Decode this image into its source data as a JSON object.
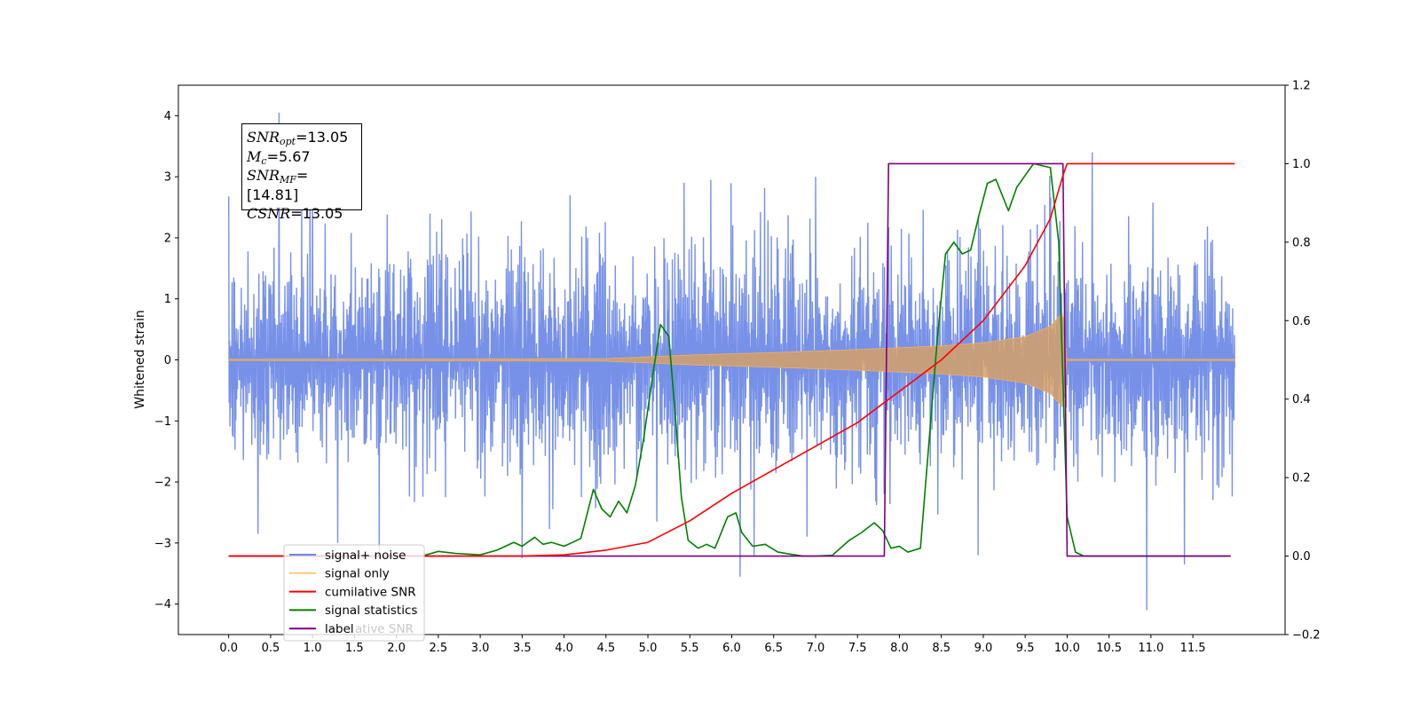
{
  "chart_data": {
    "type": "line",
    "title": "",
    "xlabel": "",
    "ylabel": "Whitened strain",
    "xlim": [
      -0.6,
      12.6
    ],
    "ylim": [
      -4.5,
      4.5
    ],
    "y2lim": [
      -0.2,
      1.2
    ],
    "x_ticks": [
      "0.0",
      "0.5",
      "1.0",
      "1.5",
      "2.0",
      "2.5",
      "3.0",
      "3.5",
      "4.0",
      "4.5",
      "5.0",
      "5.5",
      "6.0",
      "6.5",
      "7.0",
      "7.5",
      "8.0",
      "8.5",
      "9.0",
      "9.5",
      "10.0",
      "10.5",
      "11.0",
      "11.5"
    ],
    "y_ticks": [
      "4",
      "3",
      "2",
      "1",
      "0",
      "−1",
      "−2",
      "−3",
      "−4"
    ],
    "y2_ticks": [
      "1.2",
      "1.0",
      "0.8",
      "0.6",
      "0.4",
      "0.2",
      "0.0",
      "−0.2"
    ],
    "annotation": {
      "snr_opt_base": "SNR",
      "snr_opt_sub": "opt",
      "snr_opt_value": "=13.05",
      "mc_base": "M",
      "mc_sub": "c",
      "mc_value": "=5.67",
      "snr_mf_base": "SNR",
      "snr_mf_sub": "MF",
      "snr_mf_value": "=[14.81]",
      "csnr_base": "CSNR",
      "csnr_value": "=13.05"
    },
    "legend": {
      "placement": "lower-left",
      "entries": [
        "signal+ noise",
        "signal only",
        "cumilative SNR",
        "signal statistics",
        "label"
      ],
      "ghost_text": "ative SNR"
    },
    "series": [
      {
        "name": "signal+ noise",
        "axis": "left",
        "color": "#6b88e6",
        "description_type": "noise band",
        "typical_amplitude": 1.3,
        "peak_values": [
          [
            0.6,
            4.05
          ],
          [
            10.3,
            3.4
          ],
          [
            10.95,
            -4.1
          ],
          [
            6.1,
            -3.55
          ],
          [
            11.4,
            -3.35
          ],
          [
            0.35,
            -2.85
          ],
          [
            1.3,
            -3.0
          ],
          [
            3.5,
            -3.25
          ],
          [
            1.0,
            3.1
          ],
          [
            5.75,
            2.95
          ],
          [
            7.0,
            3.0
          ]
        ]
      },
      {
        "name": "signal only",
        "axis": "left",
        "color": "#d4a068",
        "envelope_x": [
          0.0,
          4.5,
          5.5,
          6.5,
          7.5,
          8.5,
          9.0,
          9.5,
          9.8,
          9.95,
          10.0,
          12.0
        ],
        "envelope_amp": [
          0.01,
          0.02,
          0.08,
          0.12,
          0.17,
          0.23,
          0.28,
          0.38,
          0.55,
          0.78,
          0.01,
          0.01
        ]
      },
      {
        "name": "cumilative SNR",
        "axis": "right",
        "color": "#ff0000",
        "x": [
          0.0,
          3.5,
          4.0,
          4.5,
          5.0,
          5.5,
          6.0,
          6.5,
          7.0,
          7.5,
          8.0,
          8.5,
          9.0,
          9.5,
          9.8,
          9.95,
          10.0,
          12.0
        ],
        "y": [
          0.0,
          0.0,
          0.003,
          0.015,
          0.035,
          0.09,
          0.16,
          0.22,
          0.28,
          0.34,
          0.42,
          0.5,
          0.6,
          0.74,
          0.86,
          0.97,
          1.0,
          1.0
        ]
      },
      {
        "name": "signal statistics",
        "axis": "right",
        "color": "#008000",
        "x": [
          0.0,
          2.3,
          2.5,
          2.7,
          3.0,
          3.2,
          3.4,
          3.5,
          3.65,
          3.75,
          3.85,
          4.0,
          4.2,
          4.35,
          4.45,
          4.55,
          4.65,
          4.75,
          4.85,
          4.95,
          5.05,
          5.15,
          5.25,
          5.33,
          5.4,
          5.48,
          5.6,
          5.7,
          5.8,
          5.95,
          6.05,
          6.12,
          6.25,
          6.4,
          6.55,
          6.7,
          6.85,
          7.0,
          7.2,
          7.4,
          7.55,
          7.7,
          7.8,
          7.9,
          8.0,
          8.1,
          8.25,
          8.45,
          8.55,
          8.65,
          8.75,
          8.85,
          8.95,
          9.05,
          9.15,
          9.3,
          9.4,
          9.5,
          9.6,
          9.8,
          9.9,
          10.0,
          10.1,
          10.2,
          11.95
        ],
        "y": [
          0.0,
          0.0,
          0.012,
          0.007,
          0.003,
          0.015,
          0.035,
          0.025,
          0.048,
          0.03,
          0.035,
          0.025,
          0.045,
          0.17,
          0.12,
          0.1,
          0.14,
          0.11,
          0.18,
          0.3,
          0.45,
          0.59,
          0.56,
          0.35,
          0.15,
          0.04,
          0.02,
          0.03,
          0.02,
          0.1,
          0.11,
          0.06,
          0.025,
          0.03,
          0.01,
          0.005,
          0.0,
          0.0,
          0.002,
          0.04,
          0.06,
          0.085,
          0.065,
          0.02,
          0.025,
          0.01,
          0.02,
          0.55,
          0.77,
          0.8,
          0.77,
          0.78,
          0.87,
          0.95,
          0.96,
          0.88,
          0.94,
          0.97,
          1.0,
          0.99,
          0.8,
          0.1,
          0.01,
          0.0,
          0.0
        ]
      },
      {
        "name": "label",
        "axis": "right",
        "color": "#800080",
        "x": [
          0.0,
          7.82,
          7.87,
          9.95,
          10.0,
          11.95
        ],
        "y": [
          0.0,
          0.0,
          1.0,
          1.0,
          0.0,
          0.0
        ]
      }
    ]
  }
}
